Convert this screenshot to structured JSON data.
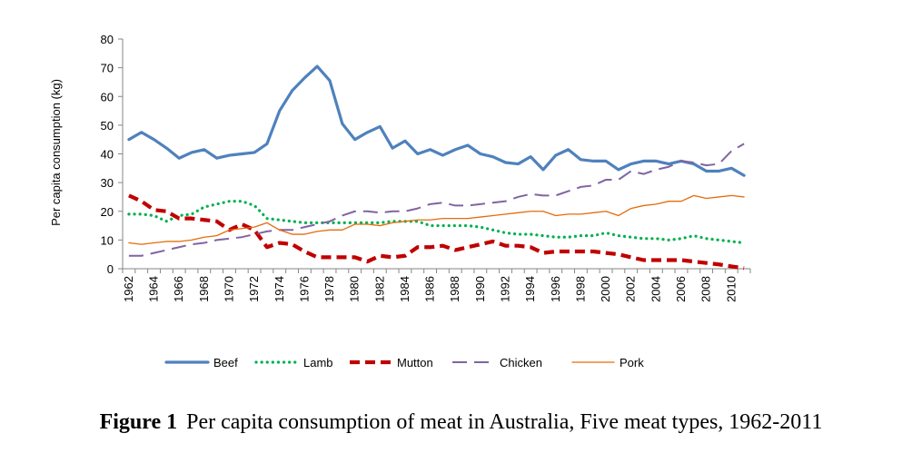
{
  "caption": {
    "prefix": "Figure 1",
    "text": "Per capita consumption of meat in Australia, Five meat types, 1962-2011"
  },
  "chart_data": {
    "type": "line",
    "title": "Per capita consumption of meat in Australia, Five meat types, 1962-2011",
    "xlabel": "",
    "ylabel": "Per capita consumption (kg)",
    "ylim": [
      0,
      80
    ],
    "yticks": [
      0,
      10,
      20,
      30,
      40,
      50,
      60,
      70,
      80
    ],
    "x": [
      1962,
      1963,
      1964,
      1965,
      1966,
      1967,
      1968,
      1969,
      1970,
      1971,
      1972,
      1973,
      1974,
      1975,
      1976,
      1977,
      1978,
      1979,
      1980,
      1981,
      1982,
      1983,
      1984,
      1985,
      1986,
      1987,
      1988,
      1989,
      1990,
      1991,
      1992,
      1993,
      1994,
      1995,
      1996,
      1997,
      1998,
      1999,
      2000,
      2001,
      2002,
      2003,
      2004,
      2005,
      2006,
      2007,
      2008,
      2009,
      2010,
      2011
    ],
    "xtick_labels": [
      "1962",
      "1964",
      "1966",
      "1968",
      "1970",
      "1972",
      "1974",
      "1976",
      "1978",
      "1980",
      "1982",
      "1984",
      "1986",
      "1988",
      "1990",
      "1992",
      "1994",
      "1996",
      "1998",
      "2000",
      "2002",
      "2004",
      "2006",
      "2008",
      "2010"
    ],
    "legend_position": "bottom",
    "grid": false,
    "series": [
      {
        "name": "Beef",
        "color": "#4F81BD",
        "style": "solid",
        "values": [
          45,
          47.5,
          45,
          42,
          38.5,
          40.5,
          41.5,
          38.5,
          39.5,
          40,
          40.5,
          43.5,
          55,
          62,
          66.5,
          70.5,
          65.5,
          50.5,
          45,
          47.5,
          49.5,
          42,
          44.5,
          40,
          41.5,
          39.5,
          41.5,
          43,
          40,
          39,
          37,
          36.5,
          39,
          34.5,
          39.5,
          41.5,
          38,
          37.5,
          37.5,
          34.5,
          36.5,
          37.5,
          37.5,
          36.5,
          37.5,
          36.5,
          34,
          34,
          35,
          32.5
        ]
      },
      {
        "name": "Lamb",
        "color": "#00B050",
        "style": "dotted",
        "values": [
          19,
          19,
          18.5,
          16.5,
          18.5,
          19,
          21.5,
          22.5,
          23.5,
          23.5,
          22,
          17.5,
          17,
          16.5,
          16,
          16,
          16,
          16,
          16,
          16,
          16,
          16.5,
          16.5,
          16.5,
          15,
          15,
          15,
          15,
          14.5,
          13.5,
          12.5,
          12,
          12,
          11.5,
          11,
          11,
          11.5,
          11.5,
          12.5,
          11.5,
          11,
          10.5,
          10.5,
          10,
          10.5,
          11.5,
          10.5,
          10,
          9.5,
          9
        ]
      },
      {
        "name": "Mutton",
        "color": "#C00000",
        "style": "dashed",
        "values": [
          25.5,
          23.5,
          20.5,
          20,
          17.5,
          17.5,
          17,
          16.5,
          13.5,
          15.5,
          13.5,
          7.5,
          9,
          8.5,
          6,
          4,
          4,
          4,
          4,
          2.5,
          4.5,
          4,
          4.5,
          7.5,
          7.5,
          8,
          6.5,
          7.5,
          8.5,
          9.5,
          8,
          8,
          7.5,
          5.5,
          6,
          6,
          6,
          6,
          5.5,
          5,
          4,
          3,
          3,
          3,
          3,
          2.5,
          2,
          1.5,
          0.8,
          0.2
        ]
      },
      {
        "name": "Chicken",
        "color": "#8064A2",
        "style": "longdash",
        "values": [
          4.5,
          4.5,
          5.5,
          6.5,
          7.5,
          8.5,
          9,
          10,
          10.5,
          11,
          12,
          13,
          13.5,
          13.5,
          14.5,
          15.5,
          16.5,
          18.5,
          20,
          20,
          19.5,
          20,
          20,
          21,
          22.5,
          23,
          22,
          22,
          22.5,
          23,
          23.5,
          25,
          26,
          25.5,
          25.5,
          27,
          28.5,
          29,
          31,
          31,
          34,
          33,
          34.5,
          35.5,
          37.5,
          37,
          36,
          36.5,
          41,
          43.5
        ]
      },
      {
        "name": "Pork",
        "color": "#E46C0A",
        "style": "thin",
        "values": [
          9,
          8.5,
          9,
          9.5,
          9.5,
          10,
          11,
          11.5,
          13.5,
          14,
          14.5,
          16,
          13.5,
          12,
          12,
          13,
          13.5,
          13.5,
          15.5,
          15.5,
          15,
          16,
          16.5,
          17,
          17,
          17.5,
          17.5,
          17.5,
          18,
          18.5,
          19,
          19.5,
          20,
          20,
          18.5,
          19,
          19,
          19.5,
          20,
          18.5,
          21,
          22,
          22.5,
          23.5,
          23.5,
          25.5,
          24.5,
          25,
          25.5,
          25
        ]
      }
    ]
  }
}
